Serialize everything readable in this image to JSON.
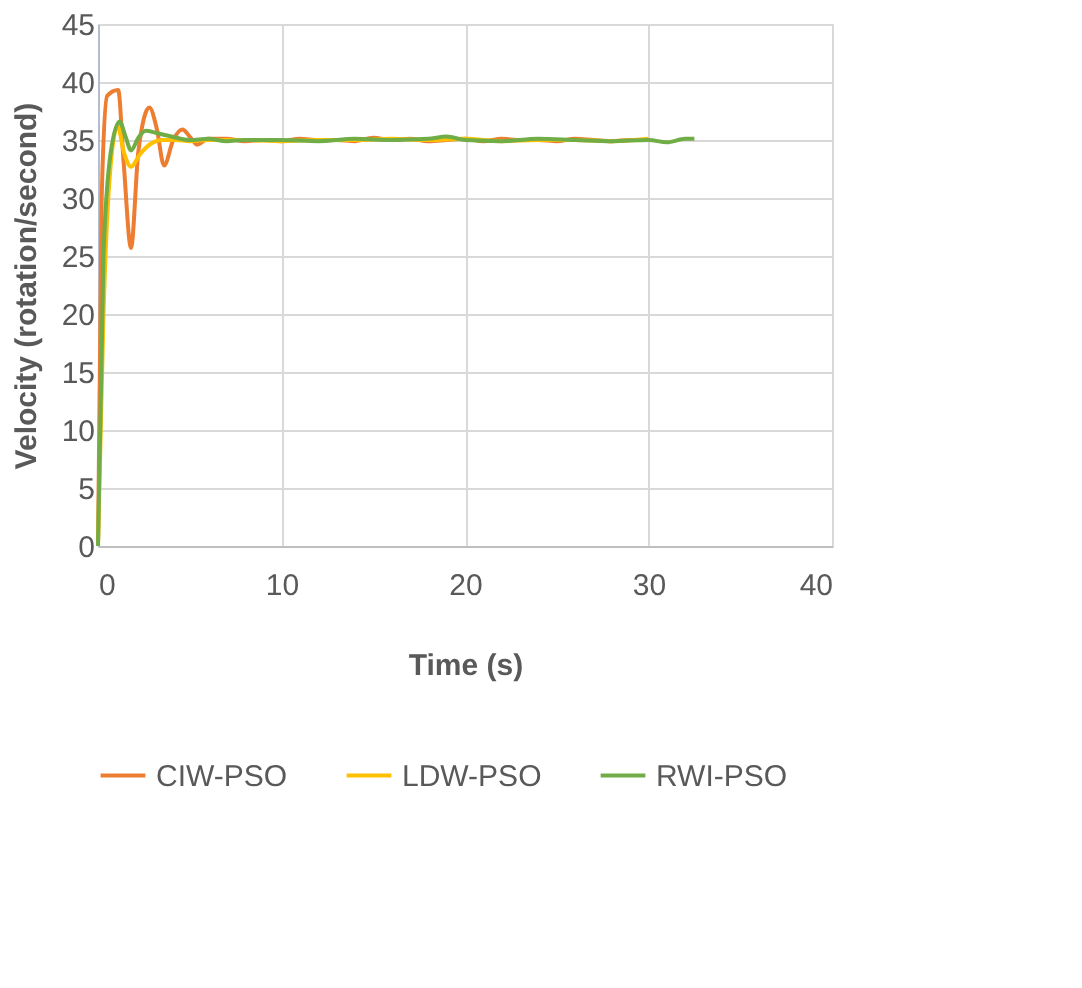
{
  "chart_data": {
    "type": "line",
    "xlabel": "Time (s)",
    "ylabel": "Velocity (rotation/second)",
    "xlim": [
      0,
      40
    ],
    "xticks": [
      0,
      10,
      20,
      30,
      40
    ],
    "ylim": [
      0,
      45
    ],
    "yticks": [
      0,
      5,
      10,
      15,
      20,
      25,
      30,
      35,
      40,
      45
    ],
    "grid": true,
    "legend": "bottom",
    "line_style": "solid",
    "marker": "none",
    "series": [
      {
        "name": "CIW-PSO",
        "color": "#ed7d31",
        "x": [
          0,
          0.2,
          0.5,
          1.1,
          1.4,
          1.8,
          2.2,
          2.8,
          3.2,
          3.6,
          4.1,
          4.6,
          5.0,
          5.4,
          6,
          7,
          8,
          9,
          10,
          11,
          12,
          13,
          14,
          15,
          16,
          17,
          18,
          19,
          20,
          21,
          22,
          23,
          24,
          25,
          26,
          27,
          28,
          29,
          30
        ],
        "values": [
          0,
          30,
          38.8,
          39.3,
          33,
          25.7,
          34,
          37.8,
          36,
          32.8,
          35,
          35.9,
          35.3,
          34.6,
          35.1,
          35.1,
          34.9,
          35,
          34.9,
          35.1,
          35,
          35,
          34.9,
          35.2,
          35,
          35.1,
          34.9,
          35,
          35.1,
          34.9,
          35.1,
          35,
          35,
          34.9,
          35.1,
          35,
          34.9,
          35,
          35
        ]
      },
      {
        "name": "LDW-PSO",
        "color": "#ffc000",
        "x": [
          0,
          0.3,
          0.7,
          1.07,
          1.4,
          1.8,
          2.3,
          2.9,
          3.5,
          4.2,
          5,
          6,
          8,
          10,
          12,
          14,
          16,
          18,
          20,
          22,
          24,
          26,
          28,
          30
        ],
        "values": [
          0,
          20,
          33,
          36.2,
          34,
          32.7,
          33.8,
          34.7,
          35,
          35,
          34.9,
          35,
          35,
          34.9,
          35,
          35,
          35.1,
          35,
          35.1,
          34.9,
          35,
          35,
          34.9,
          35.1
        ]
      },
      {
        "name": "RWI-PSO",
        "color": "#70ad47",
        "x": [
          0,
          0.3,
          0.7,
          1.18,
          1.5,
          1.8,
          2.2,
          2.6,
          3.2,
          4,
          5,
          6,
          7,
          8,
          10,
          12,
          14,
          16,
          18,
          19,
          20,
          22,
          24,
          26,
          28,
          30,
          31,
          32,
          32.5
        ],
        "values": [
          0,
          25,
          34,
          36.6,
          35.3,
          34.1,
          35.2,
          35.8,
          35.6,
          35.3,
          35,
          35.1,
          34.9,
          35,
          35,
          34.9,
          35.1,
          35,
          35.1,
          35.3,
          35,
          34.9,
          35.1,
          35,
          34.9,
          35,
          34.8,
          35.1,
          35.1
        ]
      }
    ]
  }
}
